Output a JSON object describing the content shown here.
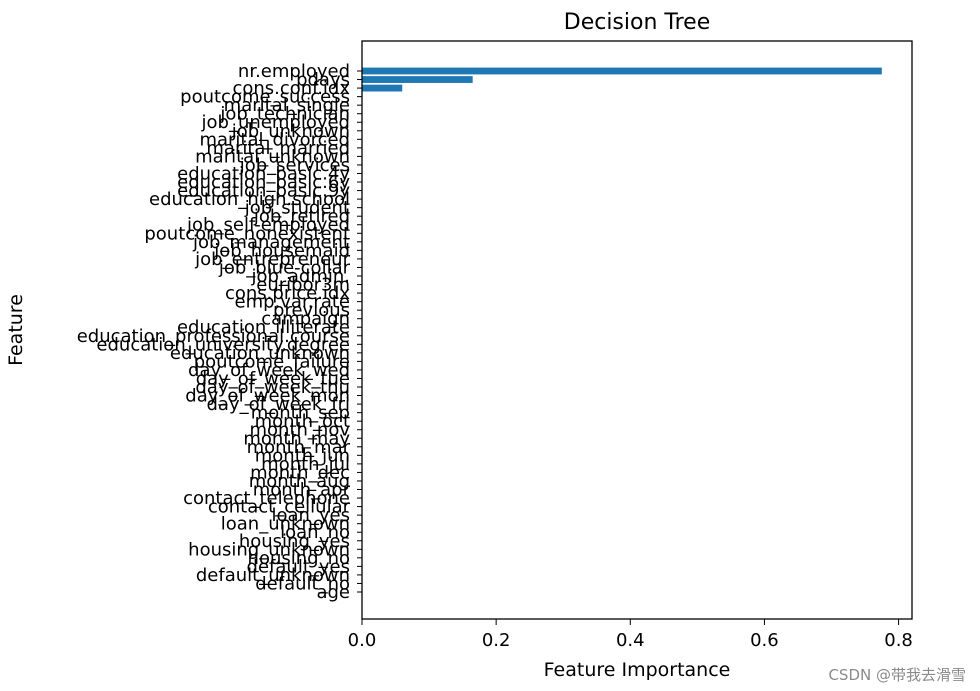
{
  "chart_data": {
    "type": "bar",
    "orientation": "horizontal",
    "title": "Decision Tree",
    "xlabel": "Feature Importance",
    "ylabel": "Feature",
    "xlim": [
      0,
      0.82
    ],
    "xticks": [
      0.0,
      0.2,
      0.4,
      0.6,
      0.8
    ],
    "xtick_labels": [
      "0.0",
      "0.2",
      "0.4",
      "0.6",
      "0.8"
    ],
    "bar_color": "#1f77b4",
    "grid": false,
    "categories": [
      "nr.employed",
      "pdays",
      "cons.conf.idx",
      "poutcome_success",
      "marital_single",
      "job_technician",
      "job_unemployed",
      "job_unknown",
      "marital_divorced",
      "marital_married",
      "marital_unknown",
      "job_services",
      "education_basic.4y",
      "education_basic.6y",
      "education_basic.9y",
      "education_high.school",
      "job_student",
      "job_retired",
      "job_self-employed",
      "poutcome_nonexistent",
      "job_management",
      "job_housemaid",
      "job_entrepreneur",
      "job_blue-collar",
      "job_admin.",
      "euribor3m",
      "cons.price.idx",
      "emp.var.rate",
      "previous",
      "campaign",
      "education_illiterate",
      "education_professional.course",
      "education_university.degree",
      "education_unknown",
      "poutcome_failure",
      "day_of_week_wed",
      "day_of_week_tue",
      "day_of_week_thu",
      "day_of_week_mon",
      "day_of_week_fri",
      "month_sep",
      "month_oct",
      "month_nov",
      "month_may",
      "month_mar",
      "month_jun",
      "month_jul",
      "month_dec",
      "month_aug",
      "month_apr",
      "contact_telephone",
      "contact_cellular",
      "loan_yes",
      "loan_unknown",
      "loan_no",
      "housing_yes",
      "housing_unknown",
      "housing_no",
      "default_yes",
      "default_unknown",
      "default_no",
      "age"
    ],
    "values": [
      0.775,
      0.165,
      0.06,
      0,
      0,
      0,
      0,
      0,
      0,
      0,
      0,
      0,
      0,
      0,
      0,
      0,
      0,
      0,
      0,
      0,
      0,
      0,
      0,
      0,
      0,
      0,
      0,
      0,
      0,
      0,
      0,
      0,
      0,
      0,
      0,
      0,
      0,
      0,
      0,
      0,
      0,
      0,
      0,
      0,
      0,
      0,
      0,
      0,
      0,
      0,
      0,
      0,
      0,
      0,
      0,
      0,
      0,
      0,
      0,
      0,
      0,
      0
    ]
  },
  "watermark": "CSDN @带我去滑雪"
}
